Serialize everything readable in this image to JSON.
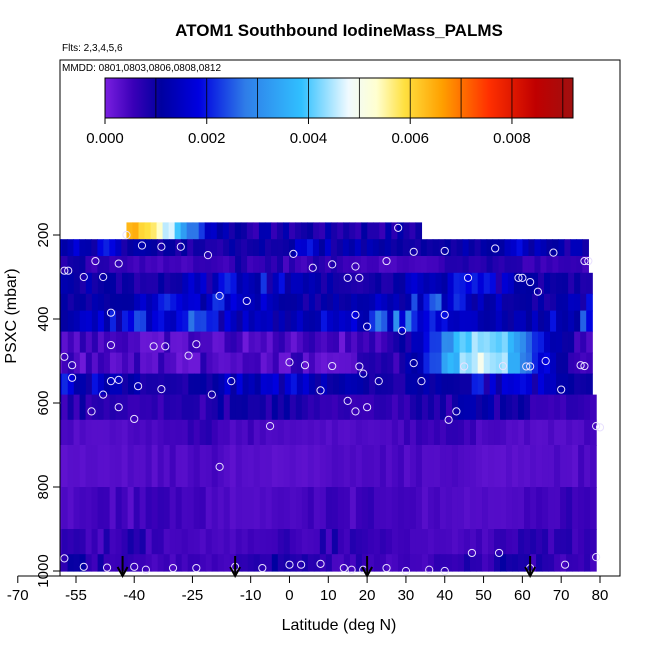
{
  "chart_data": {
    "type": "heatmap",
    "title": "ATOM1 Southbound IodineMass_PALMS",
    "subtitle_flights": "Flts: 2,3,4,5,6",
    "subtitle_dates": "MMDD: 0801,0803,0806,0808,0812",
    "xlabel": "Latitude (deg N)",
    "ylabel": "PSXC (mbar)",
    "xlim": [
      -70,
      80
    ],
    "ylim": [
      1000,
      0
    ],
    "x_ticks": [
      -70,
      -55,
      -40,
      -25,
      -10,
      0,
      10,
      20,
      30,
      40,
      50,
      60,
      70,
      80
    ],
    "y_ticks": [
      200,
      400,
      600,
      800,
      1000
    ],
    "colorbar": {
      "range": [
        0,
        0.0092
      ],
      "ticks": [
        0.0,
        0.002,
        0.004,
        0.006,
        0.008
      ],
      "tick_labels": [
        "0.000",
        "0.002",
        "0.004",
        "0.006",
        "0.008"
      ]
    },
    "grid": false,
    "pressure_bands": [
      {
        "p_top": 170,
        "p_bot": 210,
        "lat_min": -42,
        "lat_max": 34,
        "value_range": [
          0.0005,
          0.006
        ],
        "peak_lat": -40,
        "peak_value": 0.006
      },
      {
        "p_top": 210,
        "p_bot": 250,
        "lat_min": -68,
        "lat_max": 77,
        "value_range": [
          0.0002,
          0.0022
        ]
      },
      {
        "p_top": 250,
        "p_bot": 290,
        "lat_min": -68,
        "lat_max": 77,
        "value_range": [
          0.0001,
          0.0012
        ]
      },
      {
        "p_top": 290,
        "p_bot": 340,
        "lat_min": -68,
        "lat_max": 78,
        "value_range": [
          0.0001,
          0.0025
        ]
      },
      {
        "p_top": 340,
        "p_bot": 380,
        "lat_min": -68,
        "lat_max": 78,
        "value_range": [
          0.0001,
          0.0028
        ]
      },
      {
        "p_top": 380,
        "p_bot": 430,
        "lat_min": -68,
        "lat_max": 78,
        "value_range": [
          0.0001,
          0.0033
        ]
      },
      {
        "p_top": 430,
        "p_bot": 480,
        "lat_min": -68,
        "lat_max": 78,
        "value_range": [
          0.0001,
          0.0042
        ],
        "peak_lat": 50,
        "peak_value": 0.0042
      },
      {
        "p_top": 480,
        "p_bot": 530,
        "lat_min": -68,
        "lat_max": 78,
        "value_range": [
          0.0001,
          0.0045
        ],
        "peak_lat": 50,
        "peak_value": 0.0045
      },
      {
        "p_top": 530,
        "p_bot": 580,
        "lat_min": -68,
        "lat_max": 78,
        "value_range": [
          0.0001,
          0.0025
        ]
      },
      {
        "p_top": 580,
        "p_bot": 640,
        "lat_min": -68,
        "lat_max": 79,
        "value_range": [
          0.0001,
          0.0015
        ]
      },
      {
        "p_top": 640,
        "p_bot": 700,
        "lat_min": -68,
        "lat_max": 79,
        "value_range": [
          0.0001,
          0.0008
        ]
      },
      {
        "p_top": 700,
        "p_bot": 800,
        "lat_min": -68,
        "lat_max": 79,
        "value_range": [
          0.0001,
          0.0006
        ]
      },
      {
        "p_top": 800,
        "p_bot": 900,
        "lat_min": -68,
        "lat_max": 79,
        "value_range": [
          0.0001,
          0.0008
        ]
      },
      {
        "p_top": 900,
        "p_bot": 960,
        "lat_min": -68,
        "lat_max": 79,
        "value_range": [
          0.0001,
          0.001
        ]
      },
      {
        "p_top": 960,
        "p_bot": 1000,
        "lat_min": -68,
        "lat_max": 79,
        "value_range": [
          0.0001,
          0.0012
        ]
      }
    ],
    "sample_points": [
      [
        -68,
        225
      ],
      [
        -67,
        230
      ],
      [
        -66,
        235
      ],
      [
        -65,
        250
      ],
      [
        -64,
        258
      ],
      [
        -63,
        262
      ],
      [
        -58,
        285
      ],
      [
        -57,
        285
      ],
      [
        -53,
        300
      ],
      [
        -50,
        262
      ],
      [
        -48,
        300
      ],
      [
        -44,
        268
      ],
      [
        -42,
        200
      ],
      [
        -38,
        225
      ],
      [
        -33,
        228
      ],
      [
        -28,
        228
      ],
      [
        -21,
        248
      ],
      [
        -18,
        345
      ],
      [
        -11,
        357
      ],
      [
        1,
        245
      ],
      [
        6,
        278
      ],
      [
        11,
        270
      ],
      [
        15,
        302
      ],
      [
        17,
        275
      ],
      [
        18,
        302
      ],
      [
        25,
        262
      ],
      [
        28,
        183
      ],
      [
        32,
        240
      ],
      [
        40,
        238
      ],
      [
        46,
        302
      ],
      [
        53,
        232
      ],
      [
        59,
        302
      ],
      [
        60,
        302
      ],
      [
        62,
        312
      ],
      [
        64,
        335
      ],
      [
        68,
        242
      ],
      [
        76,
        262
      ],
      [
        77,
        262
      ],
      [
        -46,
        385
      ],
      [
        17,
        390
      ],
      [
        20,
        418
      ],
      [
        29,
        428
      ],
      [
        40,
        390
      ],
      [
        -67,
        482
      ],
      [
        -58,
        490
      ],
      [
        -46,
        462
      ],
      [
        -35,
        465
      ],
      [
        -32,
        465
      ],
      [
        -24,
        460
      ],
      [
        -46,
        548
      ],
      [
        -44,
        545
      ],
      [
        -39,
        560
      ],
      [
        -33,
        567
      ],
      [
        -26,
        487
      ],
      [
        -15,
        548
      ],
      [
        0,
        503
      ],
      [
        4,
        510
      ],
      [
        11,
        512
      ],
      [
        18,
        513
      ],
      [
        19,
        530
      ],
      [
        23,
        548
      ],
      [
        32,
        505
      ],
      [
        34,
        548
      ],
      [
        45,
        513
      ],
      [
        55,
        512
      ],
      [
        61,
        513
      ],
      [
        62,
        513
      ],
      [
        66,
        500
      ],
      [
        70,
        568
      ],
      [
        75,
        510
      ],
      [
        76,
        512
      ],
      [
        -67,
        520
      ],
      [
        -56,
        540
      ],
      [
        -51,
        620
      ],
      [
        -44,
        610
      ],
      [
        -40,
        638
      ],
      [
        -20,
        580
      ],
      [
        -5,
        655
      ],
      [
        8,
        570
      ],
      [
        15,
        595
      ],
      [
        17,
        620
      ],
      [
        20,
        610
      ],
      [
        41,
        640
      ],
      [
        43,
        620
      ],
      [
        79,
        655
      ],
      [
        80,
        658
      ],
      [
        -60,
        600
      ],
      [
        -48,
        580
      ],
      [
        -56,
        510
      ],
      [
        -18,
        752
      ],
      [
        -67,
        972
      ],
      [
        -58,
        970
      ],
      [
        -53,
        990
      ],
      [
        -47,
        992
      ],
      [
        -40,
        990
      ],
      [
        -37,
        997
      ],
      [
        -30,
        993
      ],
      [
        -24,
        993
      ],
      [
        -14,
        990
      ],
      [
        -7,
        993
      ],
      [
        0,
        985
      ],
      [
        3,
        985
      ],
      [
        8,
        983
      ],
      [
        14,
        993
      ],
      [
        16,
        997
      ],
      [
        19,
        997
      ],
      [
        25,
        993
      ],
      [
        30,
        1000
      ],
      [
        36,
        997
      ],
      [
        40,
        1000
      ],
      [
        47,
        957
      ],
      [
        54,
        957
      ],
      [
        62,
        993
      ],
      [
        71,
        985
      ],
      [
        79,
        967
      ]
    ],
    "arrows_lat": [
      -43,
      -14,
      20,
      62
    ]
  }
}
